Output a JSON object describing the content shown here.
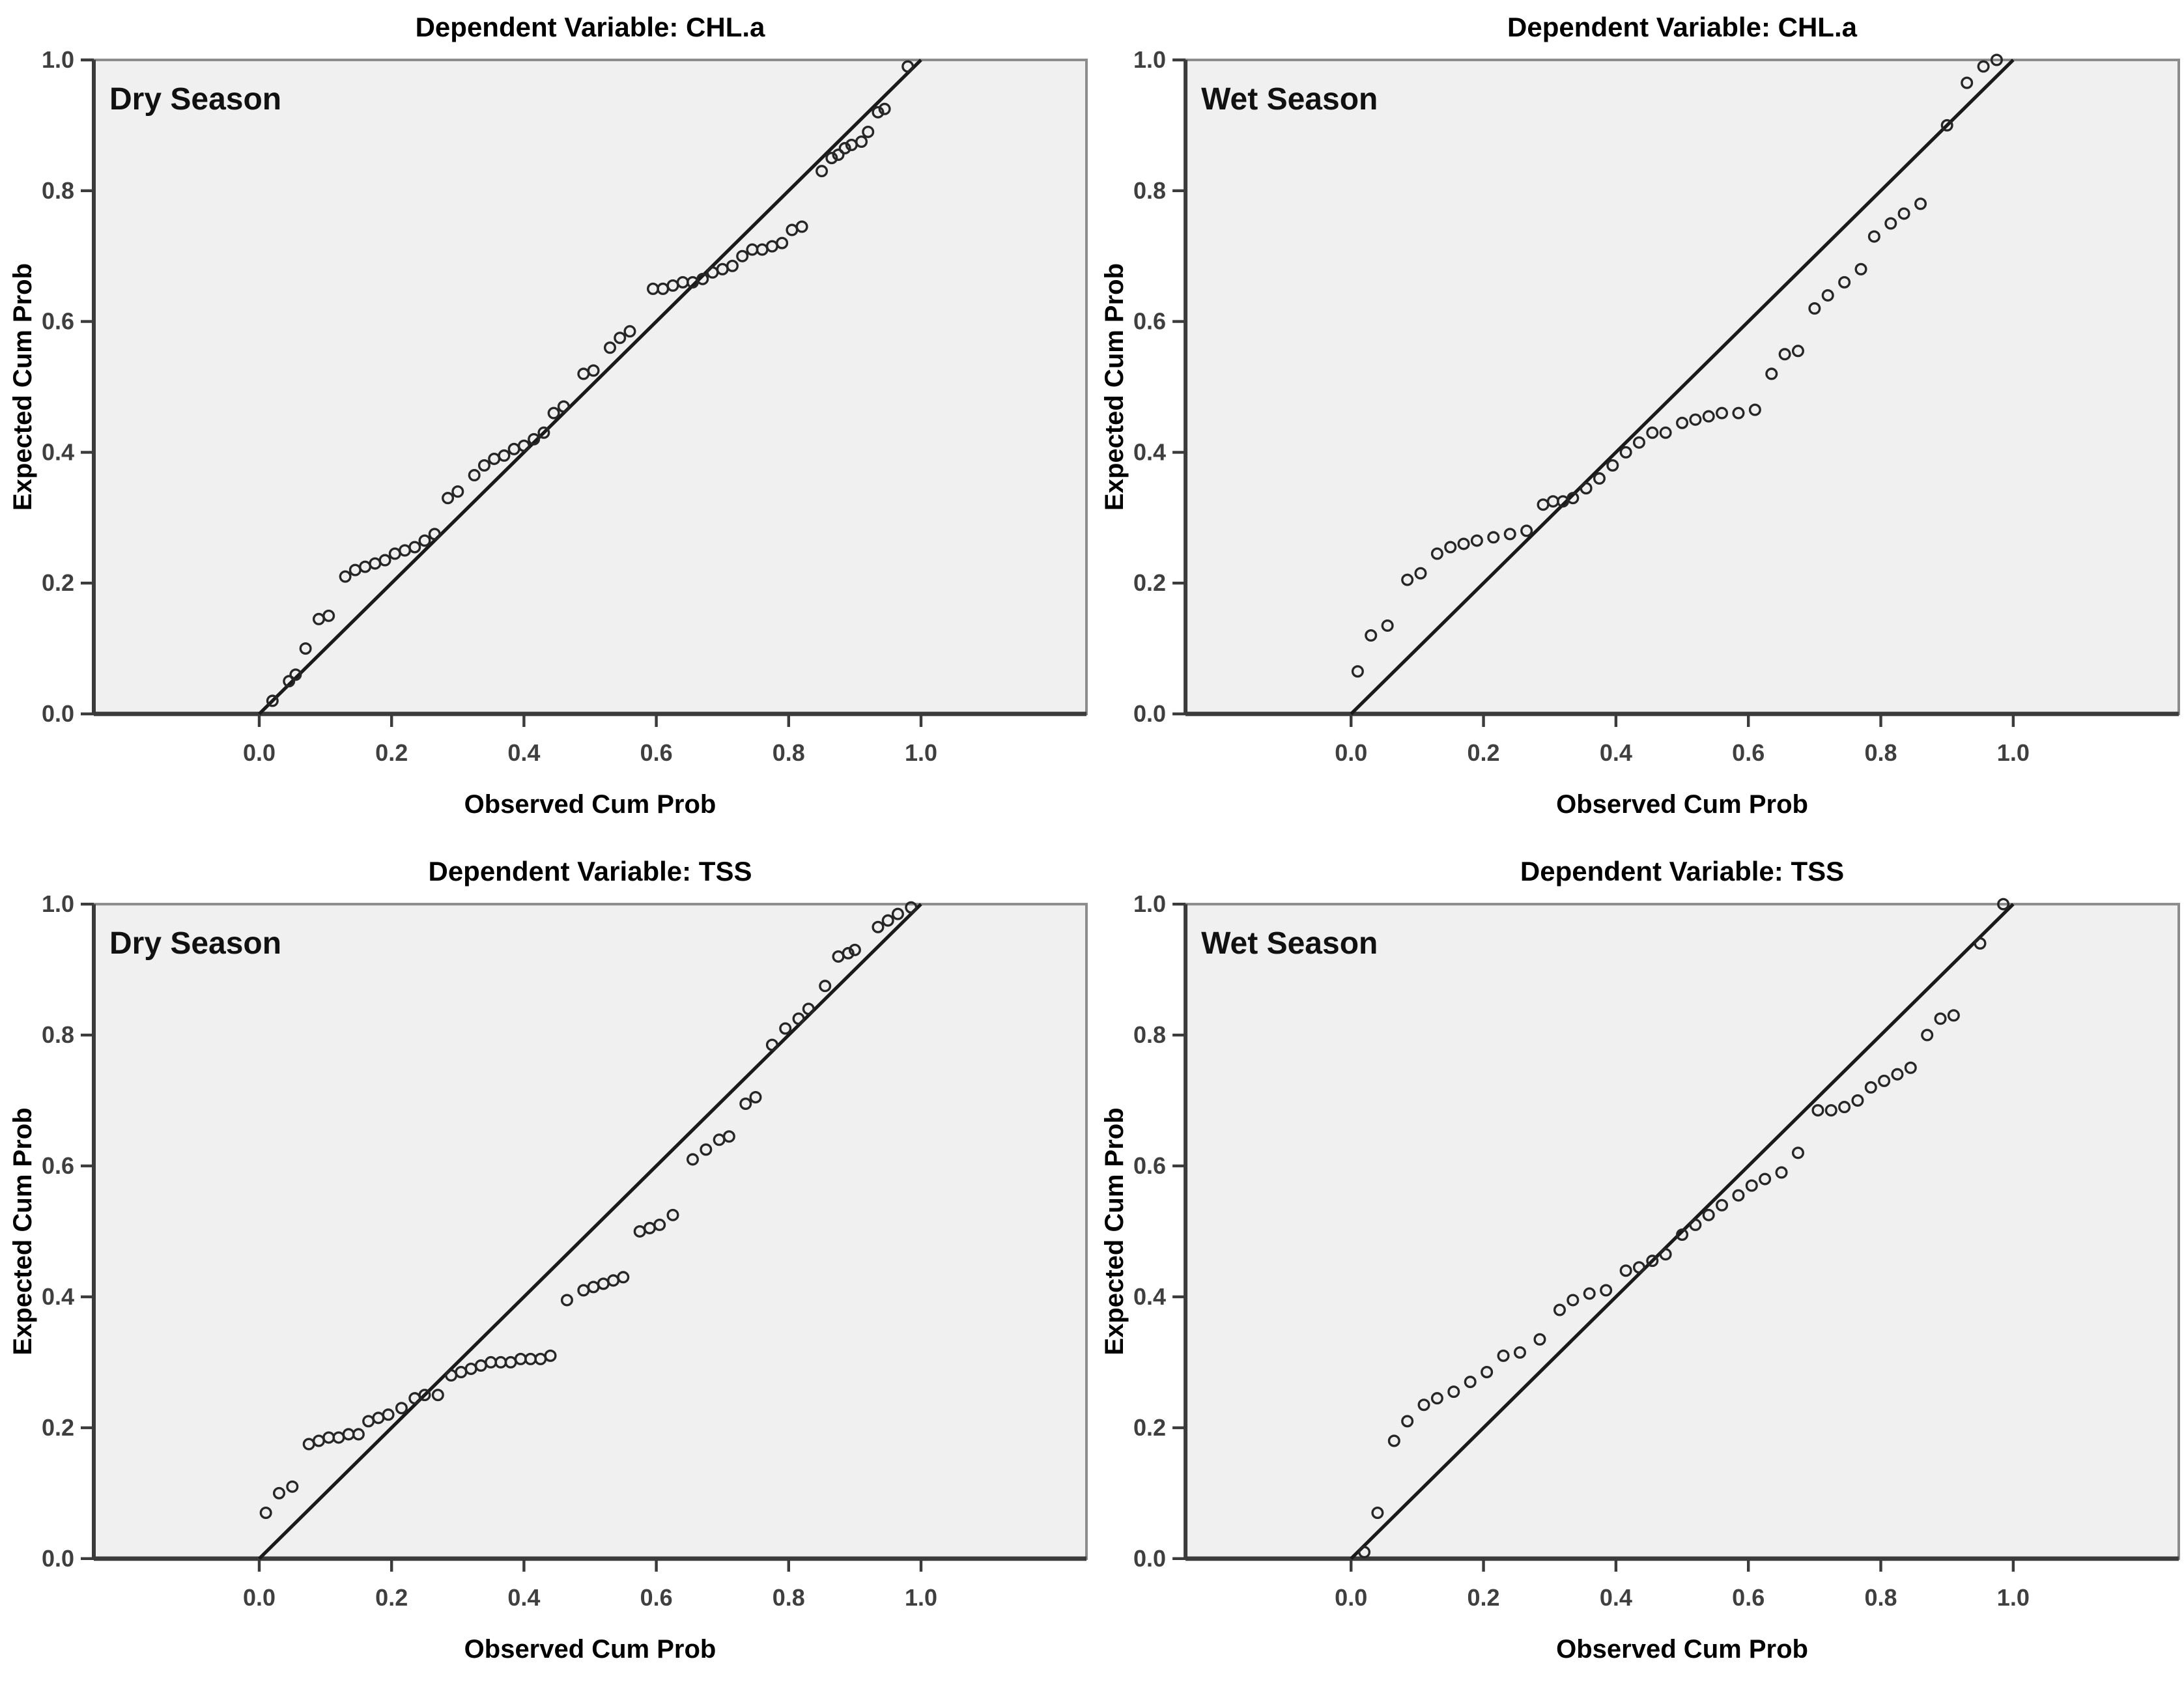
{
  "page": {
    "background": "#ffffff",
    "description": "Four SPSS normal P-P plots in a 2x2 grid"
  },
  "colors": {
    "plot_bg": "#f0f0f0",
    "frame_stroke": "#8c8c8c",
    "axis_stroke": "#3b3b3b",
    "tick_stroke": "#3b3b3b",
    "tick_label": "#3f3f3f",
    "point_stroke": "#262626",
    "ref_line": "#1a1a1a",
    "title_text": "#000000",
    "season_text": "#111111"
  },
  "axes_shared": {
    "x_label": "Observed Cum Prob",
    "y_label": "Expected Cum Prob",
    "x_tick_labels": [
      "0.0",
      "0.2",
      "0.4",
      "0.6",
      "0.8",
      "1.0"
    ],
    "y_tick_labels": [
      "0.0",
      "0.2",
      "0.4",
      "0.6",
      "0.8",
      "1.0"
    ]
  },
  "chart_data": [
    {
      "type": "scatter",
      "title": "Dependent Variable: CHL.a",
      "annotation": "Dry Season",
      "xlabel": "Observed Cum Prob",
      "ylabel": "Expected Cum Prob",
      "xlim": [
        -0.25,
        1.25
      ],
      "ylim": [
        0,
        1
      ],
      "x_ticks": [
        0.0,
        0.2,
        0.4,
        0.6,
        0.8,
        1.0
      ],
      "y_ticks": [
        0.0,
        0.2,
        0.4,
        0.6,
        0.8,
        1.0
      ],
      "grid": false,
      "reference_line": {
        "from": [
          0,
          0
        ],
        "to": [
          1,
          1
        ]
      },
      "points": [
        [
          0.02,
          0.02
        ],
        [
          0.045,
          0.05
        ],
        [
          0.055,
          0.06
        ],
        [
          0.07,
          0.1
        ],
        [
          0.09,
          0.145
        ],
        [
          0.105,
          0.15
        ],
        [
          0.13,
          0.21
        ],
        [
          0.145,
          0.22
        ],
        [
          0.16,
          0.225
        ],
        [
          0.175,
          0.23
        ],
        [
          0.19,
          0.235
        ],
        [
          0.205,
          0.245
        ],
        [
          0.22,
          0.25
        ],
        [
          0.235,
          0.255
        ],
        [
          0.25,
          0.265
        ],
        [
          0.265,
          0.275
        ],
        [
          0.285,
          0.33
        ],
        [
          0.3,
          0.34
        ],
        [
          0.325,
          0.365
        ],
        [
          0.34,
          0.38
        ],
        [
          0.355,
          0.39
        ],
        [
          0.37,
          0.395
        ],
        [
          0.385,
          0.405
        ],
        [
          0.4,
          0.41
        ],
        [
          0.415,
          0.42
        ],
        [
          0.43,
          0.43
        ],
        [
          0.445,
          0.46
        ],
        [
          0.46,
          0.47
        ],
        [
          0.49,
          0.52
        ],
        [
          0.505,
          0.525
        ],
        [
          0.53,
          0.56
        ],
        [
          0.545,
          0.575
        ],
        [
          0.56,
          0.585
        ],
        [
          0.595,
          0.65
        ],
        [
          0.61,
          0.65
        ],
        [
          0.625,
          0.655
        ],
        [
          0.64,
          0.66
        ],
        [
          0.655,
          0.66
        ],
        [
          0.67,
          0.665
        ],
        [
          0.685,
          0.675
        ],
        [
          0.7,
          0.68
        ],
        [
          0.715,
          0.685
        ],
        [
          0.73,
          0.7
        ],
        [
          0.745,
          0.71
        ],
        [
          0.76,
          0.71
        ],
        [
          0.775,
          0.715
        ],
        [
          0.79,
          0.72
        ],
        [
          0.805,
          0.74
        ],
        [
          0.82,
          0.745
        ],
        [
          0.85,
          0.83
        ],
        [
          0.865,
          0.85
        ],
        [
          0.875,
          0.855
        ],
        [
          0.885,
          0.865
        ],
        [
          0.895,
          0.87
        ],
        [
          0.91,
          0.875
        ],
        [
          0.92,
          0.89
        ],
        [
          0.935,
          0.92
        ],
        [
          0.945,
          0.925
        ],
        [
          0.98,
          0.99
        ]
      ]
    },
    {
      "type": "scatter",
      "title": "Dependent Variable: CHL.a",
      "annotation": "Wet Season",
      "xlabel": "Observed Cum Prob",
      "ylabel": "Expected Cum Prob",
      "xlim": [
        -0.25,
        1.25
      ],
      "ylim": [
        0,
        1
      ],
      "x_ticks": [
        0.0,
        0.2,
        0.4,
        0.6,
        0.8,
        1.0
      ],
      "y_ticks": [
        0.0,
        0.2,
        0.4,
        0.6,
        0.8,
        1.0
      ],
      "grid": false,
      "reference_line": {
        "from": [
          0,
          0
        ],
        "to": [
          1,
          1
        ]
      },
      "points": [
        [
          0.01,
          0.065
        ],
        [
          0.03,
          0.12
        ],
        [
          0.055,
          0.135
        ],
        [
          0.085,
          0.205
        ],
        [
          0.105,
          0.215
        ],
        [
          0.13,
          0.245
        ],
        [
          0.15,
          0.255
        ],
        [
          0.17,
          0.26
        ],
        [
          0.19,
          0.265
        ],
        [
          0.215,
          0.27
        ],
        [
          0.24,
          0.275
        ],
        [
          0.265,
          0.28
        ],
        [
          0.29,
          0.32
        ],
        [
          0.305,
          0.325
        ],
        [
          0.32,
          0.325
        ],
        [
          0.335,
          0.33
        ],
        [
          0.355,
          0.345
        ],
        [
          0.375,
          0.36
        ],
        [
          0.395,
          0.38
        ],
        [
          0.415,
          0.4
        ],
        [
          0.435,
          0.415
        ],
        [
          0.455,
          0.43
        ],
        [
          0.475,
          0.43
        ],
        [
          0.5,
          0.445
        ],
        [
          0.52,
          0.45
        ],
        [
          0.54,
          0.455
        ],
        [
          0.56,
          0.46
        ],
        [
          0.585,
          0.46
        ],
        [
          0.61,
          0.465
        ],
        [
          0.635,
          0.52
        ],
        [
          0.655,
          0.55
        ],
        [
          0.675,
          0.555
        ],
        [
          0.7,
          0.62
        ],
        [
          0.72,
          0.64
        ],
        [
          0.745,
          0.66
        ],
        [
          0.77,
          0.68
        ],
        [
          0.79,
          0.73
        ],
        [
          0.815,
          0.75
        ],
        [
          0.835,
          0.765
        ],
        [
          0.86,
          0.78
        ],
        [
          0.9,
          0.9
        ],
        [
          0.93,
          0.965
        ],
        [
          0.955,
          0.99
        ],
        [
          0.975,
          1.0
        ]
      ]
    },
    {
      "type": "scatter",
      "title": "Dependent Variable: TSS",
      "annotation": "Dry Season",
      "xlabel": "Observed Cum Prob",
      "ylabel": "Expected Cum Prob",
      "xlim": [
        -0.25,
        1.25
      ],
      "ylim": [
        0,
        1
      ],
      "x_ticks": [
        0.0,
        0.2,
        0.4,
        0.6,
        0.8,
        1.0
      ],
      "y_ticks": [
        0.0,
        0.2,
        0.4,
        0.6,
        0.8,
        1.0
      ],
      "grid": false,
      "reference_line": {
        "from": [
          0,
          0
        ],
        "to": [
          1,
          1
        ]
      },
      "points": [
        [
          0.01,
          0.07
        ],
        [
          0.03,
          0.1
        ],
        [
          0.05,
          0.11
        ],
        [
          0.075,
          0.175
        ],
        [
          0.09,
          0.18
        ],
        [
          0.105,
          0.185
        ],
        [
          0.12,
          0.185
        ],
        [
          0.135,
          0.19
        ],
        [
          0.15,
          0.19
        ],
        [
          0.165,
          0.21
        ],
        [
          0.18,
          0.215
        ],
        [
          0.195,
          0.22
        ],
        [
          0.215,
          0.23
        ],
        [
          0.235,
          0.245
        ],
        [
          0.25,
          0.25
        ],
        [
          0.27,
          0.25
        ],
        [
          0.29,
          0.28
        ],
        [
          0.305,
          0.285
        ],
        [
          0.32,
          0.29
        ],
        [
          0.335,
          0.295
        ],
        [
          0.35,
          0.3
        ],
        [
          0.365,
          0.3
        ],
        [
          0.38,
          0.3
        ],
        [
          0.395,
          0.305
        ],
        [
          0.41,
          0.305
        ],
        [
          0.425,
          0.305
        ],
        [
          0.44,
          0.31
        ],
        [
          0.465,
          0.395
        ],
        [
          0.49,
          0.41
        ],
        [
          0.505,
          0.415
        ],
        [
          0.52,
          0.42
        ],
        [
          0.535,
          0.425
        ],
        [
          0.55,
          0.43
        ],
        [
          0.575,
          0.5
        ],
        [
          0.59,
          0.505
        ],
        [
          0.605,
          0.51
        ],
        [
          0.625,
          0.525
        ],
        [
          0.655,
          0.61
        ],
        [
          0.675,
          0.625
        ],
        [
          0.695,
          0.64
        ],
        [
          0.71,
          0.645
        ],
        [
          0.735,
          0.695
        ],
        [
          0.75,
          0.705
        ],
        [
          0.775,
          0.785
        ],
        [
          0.795,
          0.81
        ],
        [
          0.815,
          0.825
        ],
        [
          0.83,
          0.84
        ],
        [
          0.855,
          0.875
        ],
        [
          0.875,
          0.92
        ],
        [
          0.89,
          0.925
        ],
        [
          0.9,
          0.93
        ],
        [
          0.935,
          0.965
        ],
        [
          0.95,
          0.975
        ],
        [
          0.965,
          0.985
        ],
        [
          0.985,
          0.995
        ]
      ]
    },
    {
      "type": "scatter",
      "title": "Dependent Variable: TSS",
      "annotation": "Wet Season",
      "xlabel": "Observed Cum Prob",
      "ylabel": "Expected Cum Prob",
      "xlim": [
        -0.25,
        1.25
      ],
      "ylim": [
        0,
        1
      ],
      "x_ticks": [
        0.0,
        0.2,
        0.4,
        0.6,
        0.8,
        1.0
      ],
      "y_ticks": [
        0.0,
        0.2,
        0.4,
        0.6,
        0.8,
        1.0
      ],
      "grid": false,
      "reference_line": {
        "from": [
          0,
          0
        ],
        "to": [
          1,
          1
        ]
      },
      "points": [
        [
          0.02,
          0.01
        ],
        [
          0.04,
          0.07
        ],
        [
          0.065,
          0.18
        ],
        [
          0.085,
          0.21
        ],
        [
          0.11,
          0.235
        ],
        [
          0.13,
          0.245
        ],
        [
          0.155,
          0.255
        ],
        [
          0.18,
          0.27
        ],
        [
          0.205,
          0.285
        ],
        [
          0.23,
          0.31
        ],
        [
          0.255,
          0.315
        ],
        [
          0.285,
          0.335
        ],
        [
          0.315,
          0.38
        ],
        [
          0.335,
          0.395
        ],
        [
          0.36,
          0.405
        ],
        [
          0.385,
          0.41
        ],
        [
          0.415,
          0.44
        ],
        [
          0.435,
          0.445
        ],
        [
          0.455,
          0.455
        ],
        [
          0.475,
          0.465
        ],
        [
          0.5,
          0.495
        ],
        [
          0.52,
          0.51
        ],
        [
          0.54,
          0.525
        ],
        [
          0.56,
          0.54
        ],
        [
          0.585,
          0.555
        ],
        [
          0.605,
          0.57
        ],
        [
          0.625,
          0.58
        ],
        [
          0.65,
          0.59
        ],
        [
          0.675,
          0.62
        ],
        [
          0.705,
          0.685
        ],
        [
          0.725,
          0.685
        ],
        [
          0.745,
          0.69
        ],
        [
          0.765,
          0.7
        ],
        [
          0.785,
          0.72
        ],
        [
          0.805,
          0.73
        ],
        [
          0.825,
          0.74
        ],
        [
          0.845,
          0.75
        ],
        [
          0.87,
          0.8
        ],
        [
          0.89,
          0.825
        ],
        [
          0.91,
          0.83
        ],
        [
          0.95,
          0.94
        ],
        [
          0.985,
          1.0
        ]
      ]
    }
  ]
}
